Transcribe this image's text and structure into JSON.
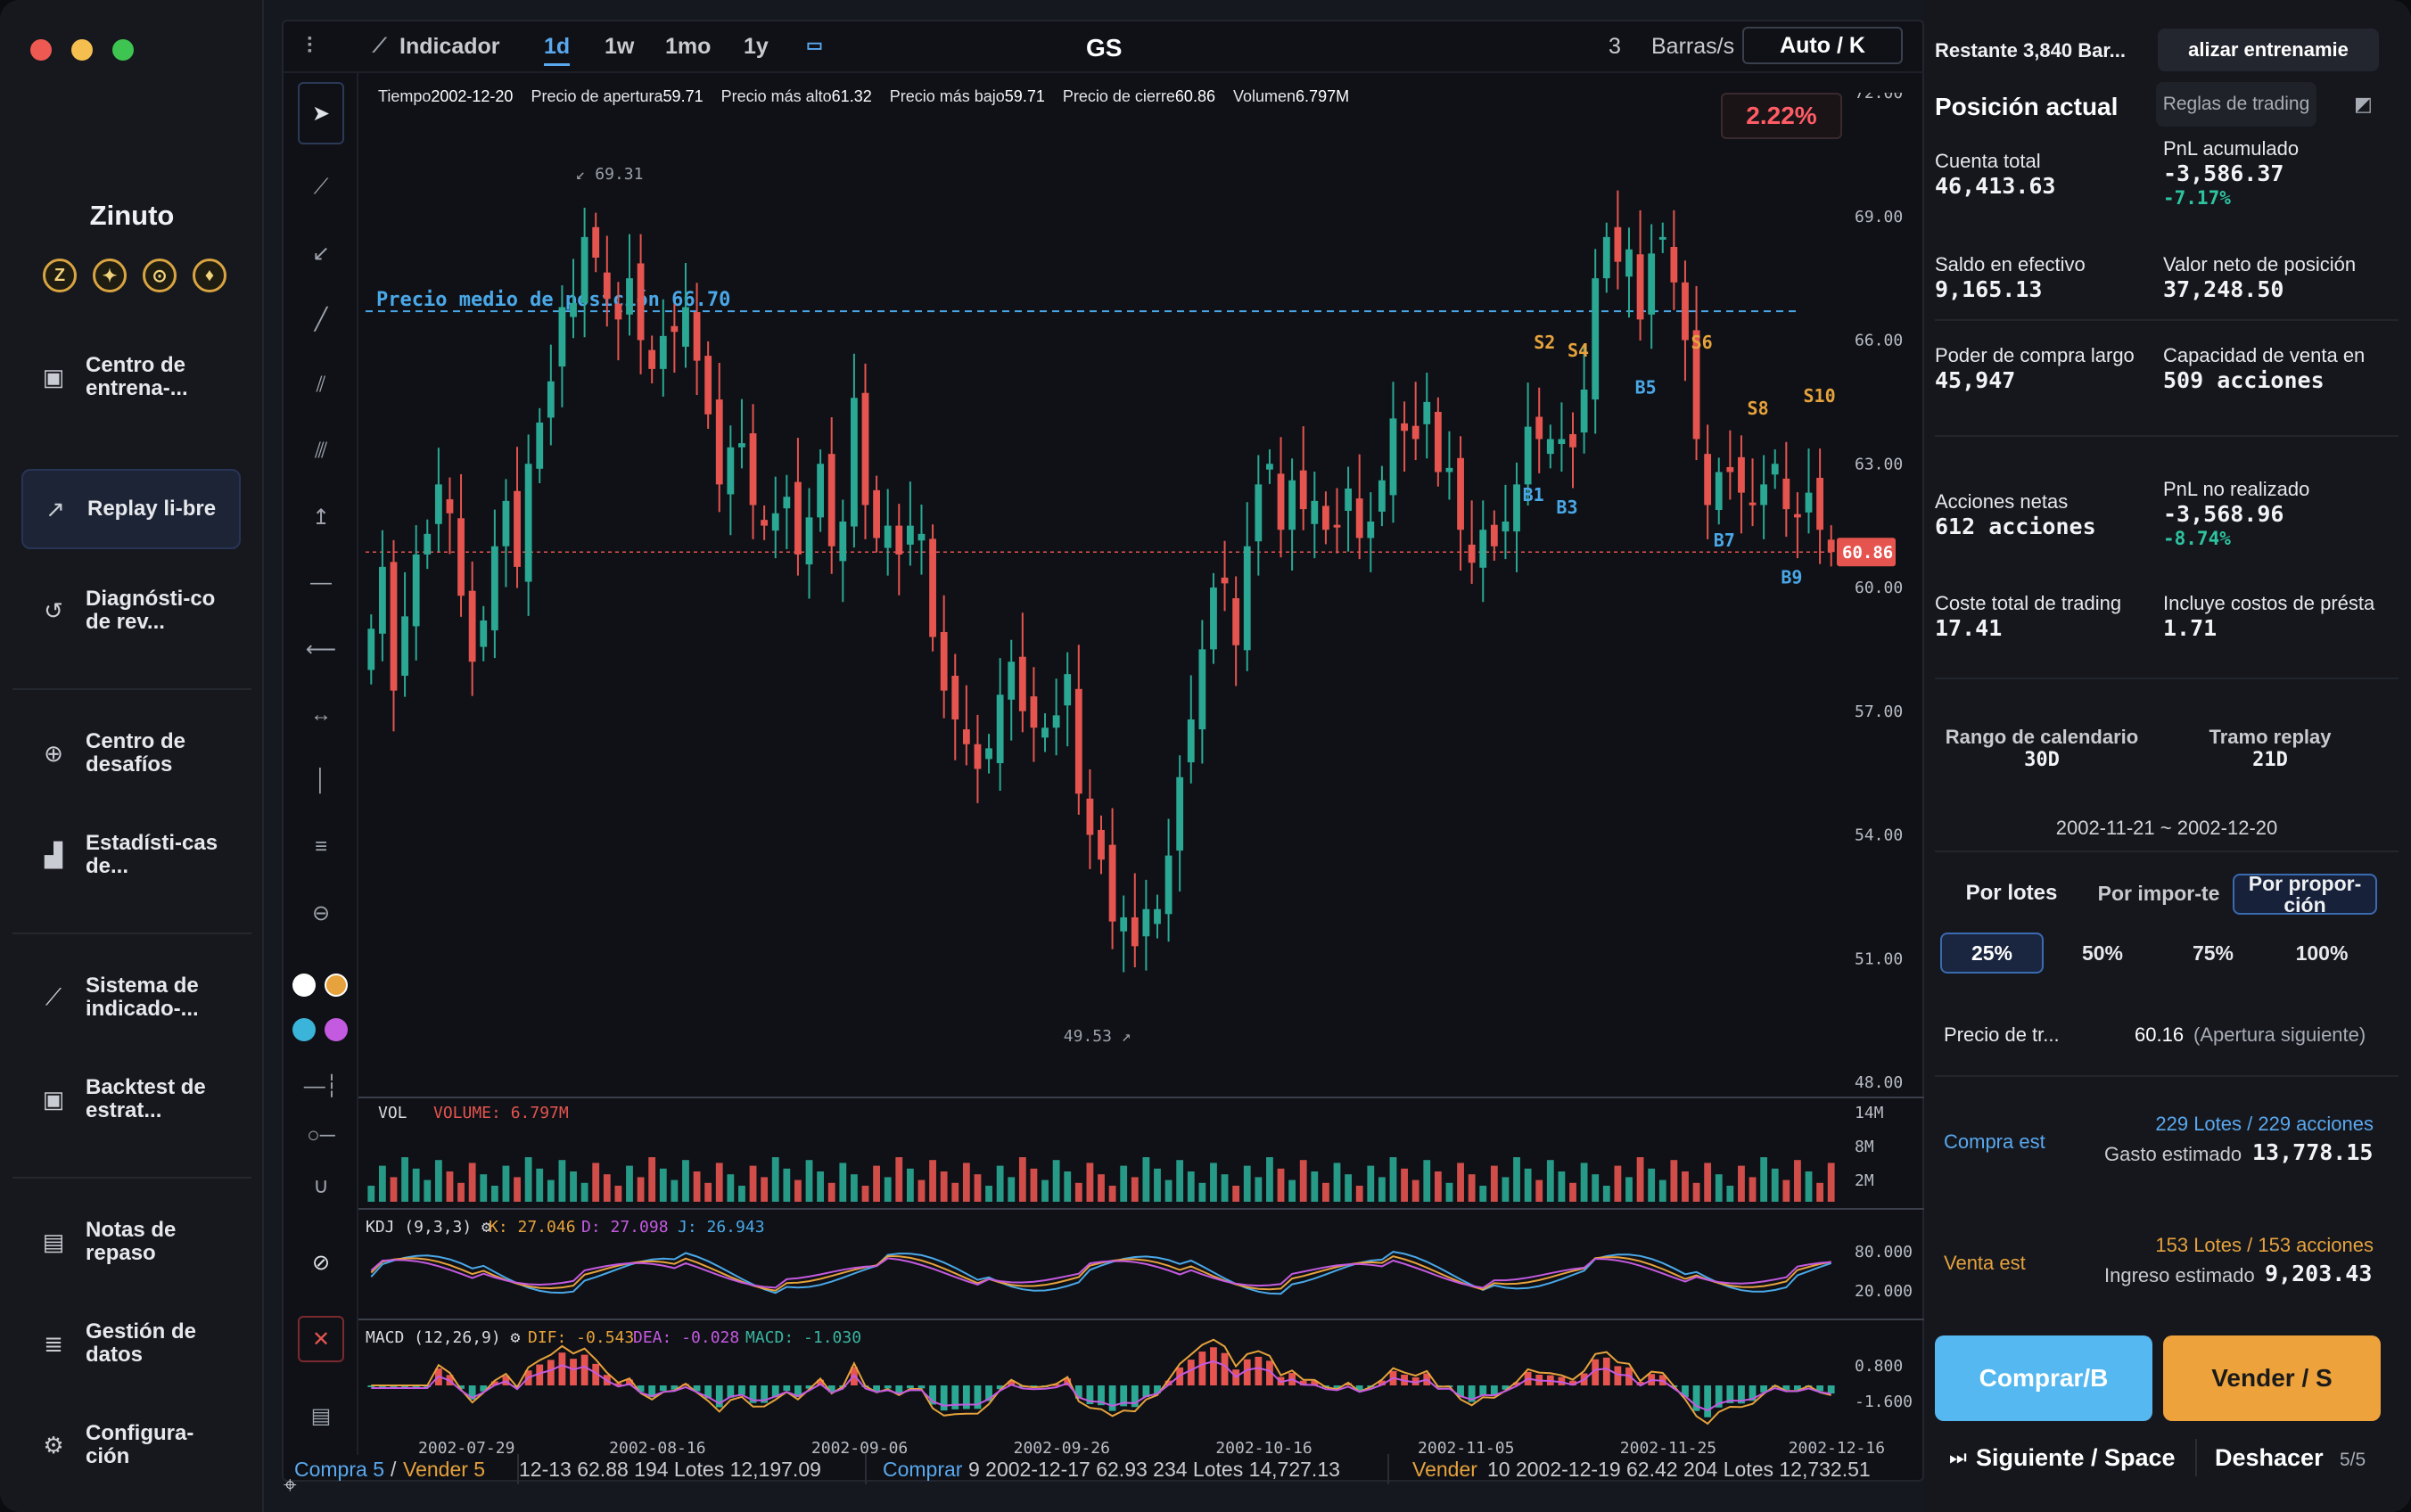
{
  "window": {
    "traffic_lights": [
      "#ee5a52",
      "#f4bf4f",
      "#3ec450"
    ]
  },
  "sidebar": {
    "brand": "Zinuto",
    "coins": [
      "Z",
      "✦",
      "⊙",
      "♦"
    ],
    "items": [
      {
        "label": "Centro de entrena-...",
        "icon": "dashboard-icon"
      },
      {
        "label": "Replay li-bre",
        "icon": "trend-icon"
      },
      {
        "label": "Diagnósti-co de rev...",
        "icon": "history-icon"
      },
      {
        "label": "Centro de desafíos",
        "icon": "target-icon"
      },
      {
        "label": "Estadísti-cas de...",
        "icon": "stats-icon"
      },
      {
        "label": "Sistema de indicado-...",
        "icon": "indicator-icon"
      },
      {
        "label": "Backtest de estrat...",
        "icon": "backtest-icon"
      },
      {
        "label": "Notas de repaso",
        "icon": "notes-icon"
      },
      {
        "label": "Gestión de datos",
        "icon": "database-icon"
      },
      {
        "label": "Configura-ción",
        "icon": "settings-icon"
      }
    ]
  },
  "toolbar": {
    "indicator": "Indicador",
    "periods": [
      "1d",
      "1w",
      "1mo",
      "1y"
    ],
    "symbol": "GS",
    "speed": "3",
    "speed_unit": "Barras/s",
    "auto": "Auto / K"
  },
  "info": {
    "time_label": "Tiempo",
    "time": "2002-12-20",
    "open_label": "Precio de apertura",
    "open": "59.71",
    "high_label": "Precio más alto",
    "high": "61.32",
    "low_label": "Precio más bajo",
    "low": "59.71",
    "close_label": "Precio de cierre",
    "close": "60.86",
    "vol_label": "Volumen",
    "vol": "6.797M"
  },
  "chart_data": {
    "type": "candlestick",
    "change_badge": "2.22%",
    "y_ticks": [
      "72.00",
      "69.00",
      "66.00",
      "63.00",
      "60.00",
      "57.00",
      "54.00",
      "51.00",
      "48.00"
    ],
    "ylim": [
      48,
      72
    ],
    "avg_price_label": "Precio medio de posición 66.70",
    "avg_price": 66.7,
    "last_price": "60.86",
    "last_price_value": 60.86,
    "max_label": "69.31",
    "min_label": "49.53",
    "x_ticks": [
      "2002-07-29",
      "2002-08-16",
      "2002-09-06",
      "2002-09-26",
      "2002-10-16",
      "2002-11-05",
      "2002-11-25",
      "2002-12-16"
    ],
    "closes": [
      59,
      60.5,
      57.5,
      59.3,
      60.8,
      61.3,
      62.5,
      61.8,
      59.8,
      58.2,
      59.2,
      61,
      62.1,
      60.5,
      63,
      64,
      65,
      66.8,
      66.9,
      68.5,
      68,
      67,
      66.5,
      67.5,
      66,
      65.3,
      66.1,
      66.2,
      66.8,
      65.5,
      64.2,
      62.5,
      63.4,
      63.5,
      62,
      61.5,
      61.8,
      62.2,
      60.8,
      61.7,
      63,
      61,
      61.6,
      64.6,
      62,
      61.2,
      61.5,
      60.8,
      61.5,
      61.3,
      58.8,
      57.5,
      56.8,
      56.2,
      55.6,
      56.1,
      57.4,
      58.2,
      57,
      56.6,
      56.6,
      56.9,
      57.9,
      55,
      54,
      53.4,
      51.9,
      52,
      51.3,
      52.2,
      52.2,
      53.5,
      55.4,
      56.8,
      58.5,
      60,
      60.1,
      58.6,
      61,
      62.5,
      63,
      61.4,
      62.6,
      61.9,
      62.1,
      61.4,
      61.5,
      62.4,
      61.2,
      61.6,
      62.6,
      64.1,
      63.8,
      63.6,
      64.5,
      62.8,
      62.9,
      61.4,
      60.6,
      61.4,
      61,
      61.6,
      62.5,
      63.9,
      63.6,
      63.6,
      63.6,
      63.4,
      64.8,
      67.5,
      68.5,
      67.9,
      68.2,
      66.5,
      68.1,
      68.5,
      67.4,
      66,
      63.6,
      62,
      62.8,
      62.8,
      62.3,
      62,
      62.5,
      63,
      61.9,
      61.7,
      62.3,
      61.4,
      60.86
    ],
    "volume": {
      "label": "VOL",
      "value_label": "VOLUME: 6.797M",
      "ticks": [
        "14M",
        "8M",
        "2M"
      ]
    },
    "kdj": {
      "label": "KDJ (9,3,3)",
      "k": "K: 27.046",
      "d": "D: 27.098",
      "j": "J: 26.943",
      "ticks": [
        "80.000",
        "20.000"
      ]
    },
    "macd": {
      "label": "MACD (12,26,9)",
      "dif": "DIF: -0.543",
      "dea": "DEA: -0.028",
      "macd": "MACD: -1.030",
      "ticks": [
        "0.800",
        "-1.600"
      ]
    },
    "sells": [
      "S2",
      "S4",
      "S6",
      "S8",
      "S10"
    ],
    "buys": [
      "B1",
      "B3",
      "B5",
      "B7",
      "B9"
    ]
  },
  "trades": {
    "summary_buy": "Compra 5",
    "summary_sep": " / ",
    "summary_sell": "Vender 5",
    "t1": "12-13  62.88  194 Lotes  12,197.09",
    "t2_side": "Comprar",
    "t2": "9  2002-12-17  62.93  234 Lotes  14,727.13",
    "t3_side": "Vender",
    "t3": "10  2002-12-19  62.42  204 Lotes  12,732.51"
  },
  "panel": {
    "remaining": "Restante 3,840 Bar...",
    "train_btn": "alizar entrenamie",
    "title": "Posición actual",
    "rules_btn": "Reglas de trading",
    "total_account_label": "Cuenta total",
    "total_account": "46,413.63",
    "acc_pnl_label": "PnL acumulado",
    "acc_pnl": "-3,586.37",
    "acc_pnl_pct": "-7.17%",
    "cash_label": "Saldo en efectivo",
    "cash": "9,165.13",
    "net_pos_label": "Valor neto de posición",
    "net_pos": "37,248.50",
    "buy_power_label": "Poder de compra largo",
    "buy_power": "45,947",
    "sell_cap_label": "Capacidad de venta en",
    "sell_cap": "509 acciones",
    "net_shares_label": "Acciones netas",
    "net_shares": "612 acciones",
    "unreal_label": "PnL no realizado",
    "unreal": "-3,568.96",
    "unreal_pct": "-8.74%",
    "cost_label": "Coste total de trading",
    "cost": "17.41",
    "borrow_label": "Incluye costos de présta",
    "borrow": "1.71",
    "cal_range_label": "Rango de calendario",
    "cal_range": "30D",
    "replay_label": "Tramo replay",
    "replay": "21D",
    "date_range": "2002-11-21 ~ 2002-12-20",
    "modes": [
      "Por lotes",
      "Por impor-te",
      "Por propor-ción"
    ],
    "pcts": [
      "25%",
      "50%",
      "75%",
      "100%"
    ],
    "price_label": "Precio de tr...",
    "price": "60.16",
    "price_note": "(Apertura siguiente)",
    "buy_est_label": "Compra est",
    "buy_est_lots": "229 Lotes / 229 acciones",
    "buy_cost_label": "Gasto estimado",
    "buy_cost": "13,778.15",
    "sell_est_label": "Venta est",
    "sell_est_lots": "153 Lotes / 153 acciones",
    "sell_inc_label": "Ingreso estimado",
    "sell_inc": "9,203.43",
    "buy_btn": "Comprar/B",
    "sell_btn": "Vender / S",
    "next_btn": "Siguiente / Space",
    "undo_btn": "Deshacer",
    "undo_count": "5/5"
  },
  "colors": {
    "up": "#2aa894",
    "down": "#e5544f",
    "accent": "#4aa8e8",
    "orange": "#e6a23c",
    "buy_btn": "#56b8f0",
    "sell_btn": "#eea23c"
  }
}
